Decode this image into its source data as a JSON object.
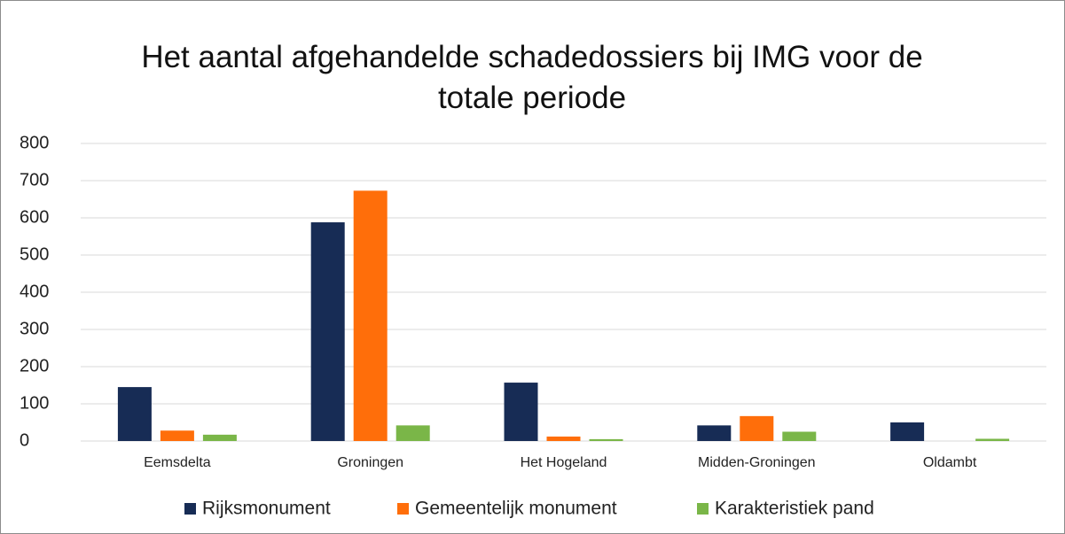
{
  "chart_data": {
    "type": "bar",
    "title": "Het aantal afgehandelde schadedossiers bij IMG voor de totale periode",
    "categories": [
      "Eemsdelta",
      "Groningen",
      "Het Hogeland",
      "Midden-Groningen",
      "Oldambt"
    ],
    "series": [
      {
        "name": "Rijksmonument",
        "color": "#172c55",
        "values": [
          145,
          588,
          157,
          42,
          50
        ]
      },
      {
        "name": "Gemeentelijk monument",
        "color": "#ff6e0a",
        "values": [
          28,
          673,
          12,
          67,
          0
        ]
      },
      {
        "name": "Karakteristiek pand",
        "color": "#7ab648",
        "values": [
          17,
          42,
          5,
          25,
          6
        ]
      }
    ],
    "ylim": [
      0,
      800
    ],
    "yticks": [
      0,
      100,
      200,
      300,
      400,
      500,
      600,
      700,
      800
    ],
    "grid": true,
    "legend": "bottom"
  }
}
